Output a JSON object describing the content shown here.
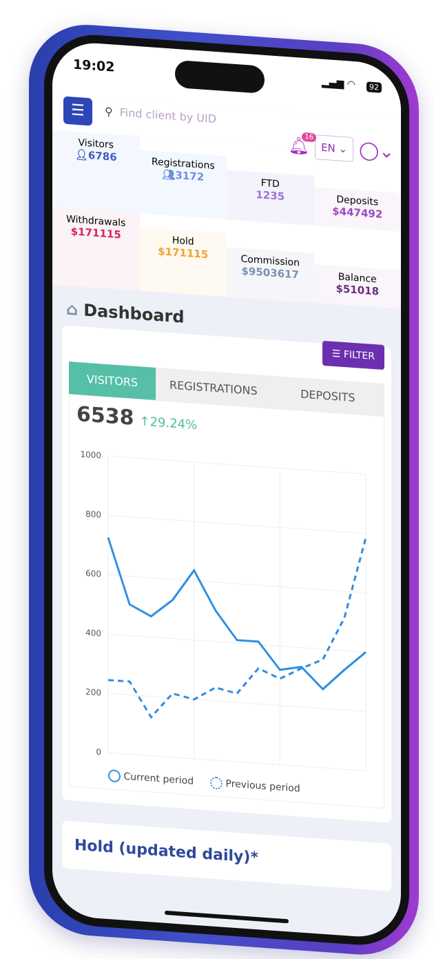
{
  "status": {
    "time": "19:02",
    "battery": "92"
  },
  "search": {
    "placeholder": "Find client by UID"
  },
  "notifications": {
    "count": "16"
  },
  "language": "EN",
  "stats": [
    {
      "label": "Visitors",
      "value": "6786",
      "color": "#3d5fc4"
    },
    {
      "label": "Registrations",
      "value": "3172",
      "color": "#6b8ee0"
    },
    {
      "label": "FTD",
      "value": "1235",
      "color": "#a070d8"
    },
    {
      "label": "Deposits",
      "value": "$447492",
      "color": "#9a4cbf"
    },
    {
      "label": "Withdrawals",
      "value": "$171115",
      "color": "#d8245a"
    },
    {
      "label": "Hold",
      "value": "$171115",
      "color": "#f0a030"
    },
    {
      "label": "Commission",
      "value": "$9503617",
      "color": "#7a90b0"
    },
    {
      "label": "Balance",
      "value": "$51018",
      "color": "#6a2f7a"
    }
  ],
  "page_title": "Dashboard",
  "filter_label": "FILTER",
  "tabs": [
    "VISITORS",
    "REGISTRATIONS",
    "DEPOSITS"
  ],
  "summary": {
    "value": "6538",
    "change": "29.24%"
  },
  "chart_data": {
    "type": "line",
    "ylim": [
      0,
      1000
    ],
    "yticks": [
      "0",
      "200",
      "400",
      "600",
      "800",
      "1000"
    ],
    "x": [
      1,
      2,
      3,
      4,
      5,
      6,
      7,
      8,
      9,
      10,
      11,
      12,
      13
    ],
    "series": [
      {
        "name": "Current period",
        "style": "solid",
        "color": "#2f8fe0",
        "values": [
          725,
          505,
          470,
          530,
          635,
          505,
          410,
          410,
          320,
          335,
          265,
          335,
          400
        ]
      },
      {
        "name": "Previous period",
        "style": "dashed",
        "color": "#2f8fe0",
        "values": [
          245,
          245,
          130,
          215,
          200,
          245,
          230,
          320,
          290,
          330,
          365,
          510,
          785
        ]
      }
    ],
    "grid": true,
    "legend": "bottom"
  },
  "hold_title": "Hold (updated daily)*"
}
